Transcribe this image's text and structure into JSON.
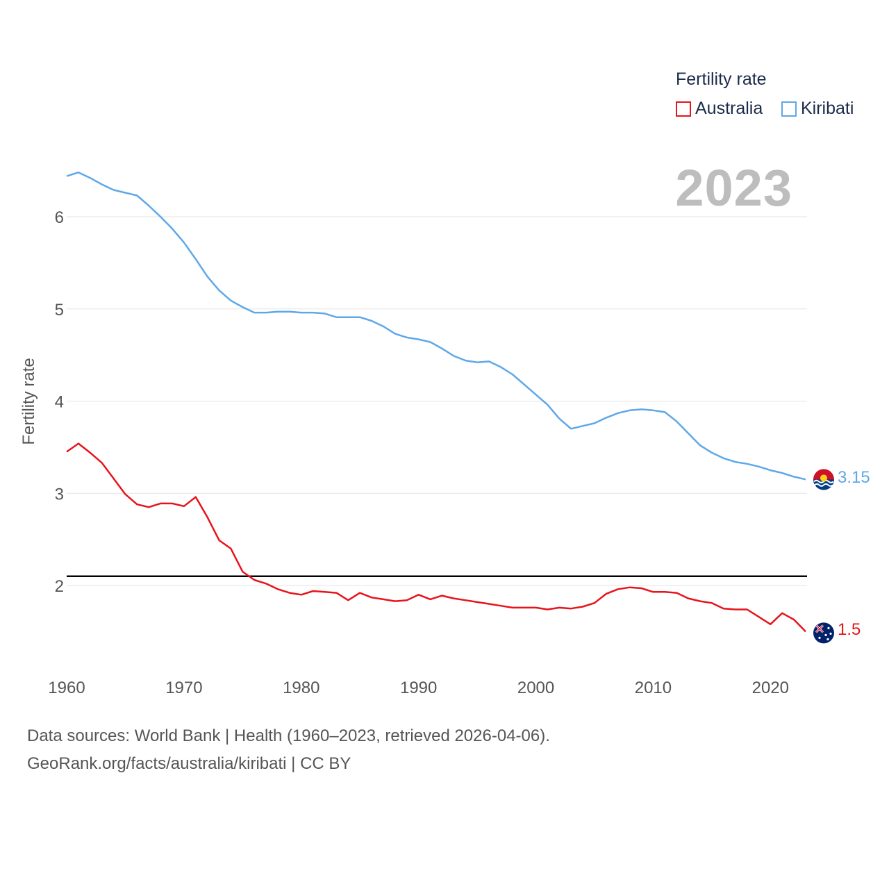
{
  "legend": {
    "title": "Fertility rate",
    "items": [
      {
        "label": "Australia",
        "color": "#e8131b"
      },
      {
        "label": "Kiribati",
        "color": "#5ea8e8"
      }
    ]
  },
  "year_label": "2023",
  "footer": {
    "line1": "Data sources: World Bank | Health (1960–2023, retrieved 2026-04-06).",
    "line2": "GeoRank.org/facts/australia/kiribati | CC BY"
  },
  "end_labels": {
    "kiribati": "3.15",
    "australia": "1.5"
  },
  "chart_data": {
    "type": "line",
    "title": "",
    "xlabel": "",
    "ylabel": "Fertility rate",
    "xlim": [
      1960,
      2023
    ],
    "ylim": [
      1.1,
      6.75
    ],
    "x_ticks": [
      1960,
      1970,
      1980,
      1990,
      2000,
      2010,
      2020
    ],
    "y_ticks": [
      2,
      3,
      4,
      5,
      6
    ],
    "grid": true,
    "legend_position": "top-right",
    "reference_line": {
      "y": 2.1,
      "color": "#000000"
    },
    "x": [
      1960,
      1961,
      1962,
      1963,
      1964,
      1965,
      1966,
      1967,
      1968,
      1969,
      1970,
      1971,
      1972,
      1973,
      1974,
      1975,
      1976,
      1977,
      1978,
      1979,
      1980,
      1981,
      1982,
      1983,
      1984,
      1985,
      1986,
      1987,
      1988,
      1989,
      1990,
      1991,
      1992,
      1993,
      1994,
      1995,
      1996,
      1997,
      1998,
      1999,
      2000,
      2001,
      2002,
      2003,
      2004,
      2005,
      2006,
      2007,
      2008,
      2009,
      2010,
      2011,
      2012,
      2013,
      2014,
      2015,
      2016,
      2017,
      2018,
      2019,
      2020,
      2021,
      2022,
      2023
    ],
    "series": [
      {
        "name": "Australia",
        "color": "#e8131b",
        "values": [
          3.45,
          3.54,
          3.44,
          3.33,
          3.16,
          2.99,
          2.88,
          2.85,
          2.89,
          2.89,
          2.86,
          2.96,
          2.74,
          2.49,
          2.4,
          2.15,
          2.06,
          2.02,
          1.96,
          1.92,
          1.9,
          1.94,
          1.93,
          1.92,
          1.84,
          1.92,
          1.87,
          1.85,
          1.83,
          1.84,
          1.9,
          1.85,
          1.89,
          1.86,
          1.84,
          1.82,
          1.8,
          1.78,
          1.76,
          1.76,
          1.76,
          1.74,
          1.76,
          1.75,
          1.77,
          1.81,
          1.91,
          1.96,
          1.98,
          1.97,
          1.93,
          1.93,
          1.92,
          1.86,
          1.83,
          1.81,
          1.75,
          1.74,
          1.74,
          1.66,
          1.58,
          1.7,
          1.63,
          1.5
        ],
        "end_value": "1.5"
      },
      {
        "name": "Kiribati",
        "color": "#5ea8e8",
        "values": [
          6.44,
          6.48,
          6.42,
          6.35,
          6.29,
          6.26,
          6.23,
          6.12,
          6.0,
          5.87,
          5.72,
          5.54,
          5.35,
          5.2,
          5.09,
          5.02,
          4.96,
          4.96,
          4.97,
          4.97,
          4.96,
          4.96,
          4.95,
          4.91,
          4.91,
          4.91,
          4.87,
          4.81,
          4.73,
          4.69,
          4.67,
          4.64,
          4.57,
          4.49,
          4.44,
          4.42,
          4.43,
          4.37,
          4.29,
          4.18,
          4.07,
          3.96,
          3.81,
          3.7,
          3.73,
          3.76,
          3.82,
          3.87,
          3.9,
          3.91,
          3.9,
          3.88,
          3.78,
          3.65,
          3.52,
          3.44,
          3.38,
          3.34,
          3.32,
          3.29,
          3.25,
          3.22,
          3.18,
          3.15
        ],
        "end_value": "3.15"
      }
    ]
  }
}
